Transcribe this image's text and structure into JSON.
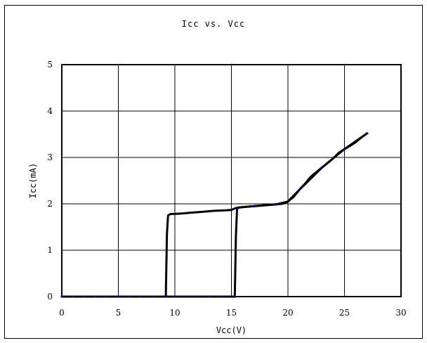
{
  "chart_data": {
    "type": "line",
    "title": "Icc vs. Vcc",
    "xlabel": "Vcc(V)",
    "ylabel": "Icc(mA)",
    "xlim": [
      0,
      30
    ],
    "ylim": [
      0,
      5
    ],
    "xticks": [
      "0",
      "5",
      "10",
      "15",
      "20",
      "25",
      "30"
    ],
    "yticks": [
      "0",
      "1",
      "2",
      "3",
      "4",
      "5"
    ],
    "grid": true,
    "legend": "none",
    "series": [
      {
        "color": "#000000",
        "points": [
          [
            0,
            0
          ],
          [
            9.2,
            0
          ],
          [
            9.3,
            1.35
          ],
          [
            9.4,
            1.75
          ],
          [
            9.6,
            1.78
          ],
          [
            10.5,
            1.79
          ],
          [
            11.5,
            1.81
          ],
          [
            12.5,
            1.83
          ],
          [
            13.5,
            1.85
          ],
          [
            14.5,
            1.86
          ],
          [
            15.0,
            1.87
          ],
          [
            15.3,
            1.9
          ],
          [
            15.6,
            1.92
          ],
          [
            16.5,
            1.94
          ],
          [
            17.5,
            1.96
          ],
          [
            18.5,
            1.98
          ],
          [
            19.5,
            2.0
          ],
          [
            20.0,
            2.05
          ],
          [
            20.5,
            2.15
          ],
          [
            21.0,
            2.3
          ],
          [
            21.5,
            2.43
          ],
          [
            22.0,
            2.58
          ],
          [
            22.5,
            2.68
          ],
          [
            23.0,
            2.78
          ],
          [
            23.5,
            2.88
          ],
          [
            24.0,
            2.98
          ],
          [
            24.5,
            3.1
          ],
          [
            25.0,
            3.18
          ],
          [
            25.5,
            3.25
          ],
          [
            26.0,
            3.33
          ],
          [
            26.5,
            3.43
          ],
          [
            27.0,
            3.52
          ]
        ]
      },
      {
        "color": "#000000",
        "points": [
          [
            27.0,
            3.52
          ],
          [
            25.0,
            3.18
          ],
          [
            23.0,
            2.78
          ],
          [
            21.0,
            2.3
          ],
          [
            20.0,
            2.05
          ],
          [
            19.0,
            1.99
          ],
          [
            18.0,
            1.97
          ],
          [
            17.0,
            1.95
          ],
          [
            16.0,
            1.93
          ],
          [
            15.5,
            1.91
          ],
          [
            15.4,
            1.3
          ],
          [
            15.3,
            0
          ],
          [
            9.2,
            0
          ],
          [
            0,
            0
          ]
        ]
      }
    ],
    "marker_color": "#000080",
    "marker_x": [
      0,
      1,
      2,
      3,
      4,
      5,
      6,
      7,
      8,
      9.2,
      10,
      11,
      12,
      13,
      14,
      15.3,
      15.5,
      17,
      19,
      21,
      23,
      25,
      27
    ]
  }
}
